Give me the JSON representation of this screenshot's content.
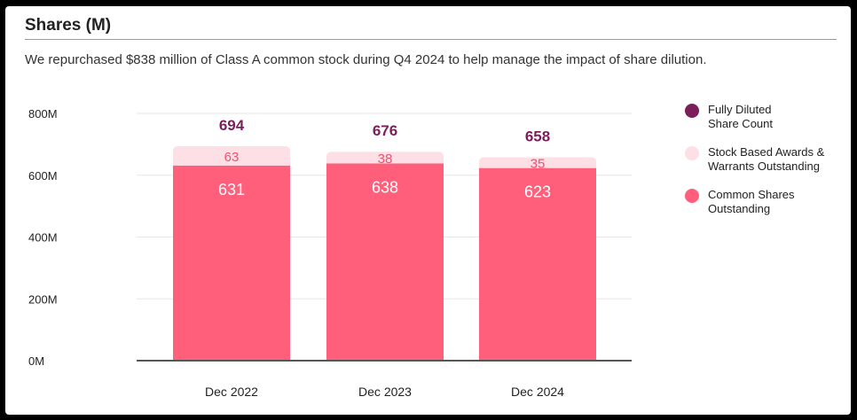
{
  "header": {
    "title": "Shares (M)",
    "subtitle": "We repurchased $838 million of Class A common stock during Q4 2024 to help manage the impact of share dilution."
  },
  "colors": {
    "fully_diluted": "#7b1e5a",
    "stock_awards": "#fde0e6",
    "stock_awards_text": "#f0506e",
    "common_shares": "#ff5f7a",
    "axis": "#555555",
    "grid": "#e6e6e6"
  },
  "legend": [
    {
      "label_line1": "Fully Diluted",
      "label_line2": "Share Count",
      "color_key": "fully_diluted"
    },
    {
      "label_line1": "Stock Based Awards &",
      "label_line2": "Warrants Outstanding",
      "color_key": "stock_awards"
    },
    {
      "label_line1": "Common Shares",
      "label_line2": "Outstanding",
      "color_key": "common_shares"
    }
  ],
  "chart_data": {
    "type": "bar",
    "stacked": true,
    "categories": [
      "Dec 2022",
      "Dec 2023",
      "Dec 2024"
    ],
    "series": [
      {
        "name": "Common Shares Outstanding",
        "values": [
          631,
          638,
          623
        ]
      },
      {
        "name": "Stock Based Awards & Warrants Outstanding",
        "values": [
          63,
          38,
          35
        ]
      }
    ],
    "totals": {
      "name": "Fully Diluted Share Count",
      "values": [
        694,
        676,
        658
      ]
    },
    "yticks": [
      0,
      200,
      400,
      600,
      800
    ],
    "ytick_labels": [
      "0M",
      "200M",
      "400M",
      "600M",
      "800M"
    ],
    "ylim": [
      0,
      800
    ],
    "grid": true,
    "legend_position": "right"
  }
}
